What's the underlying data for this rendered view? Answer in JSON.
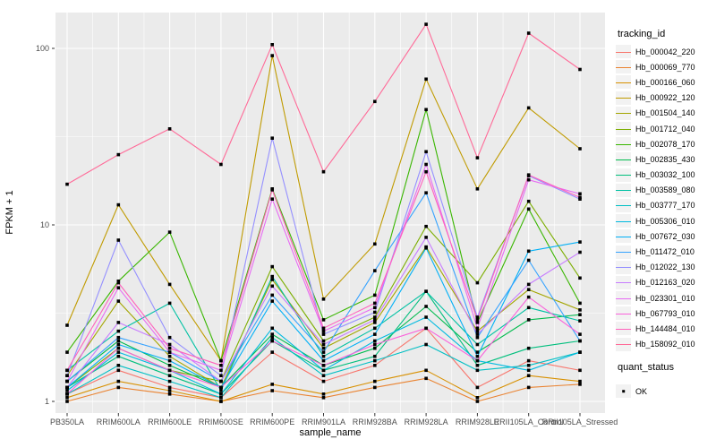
{
  "figure": {
    "background": "#FFFFFF",
    "panel_background": "#EBEBEB",
    "gridline_color": "#FFFFFF",
    "tick_label_color": "#4D4D4D",
    "tick_mark_color": "#333333",
    "axis_title_color": "#000000",
    "point_color": "#000000"
  },
  "chart_data": {
    "type": "line",
    "title": "",
    "xlabel": "sample_name",
    "ylabel": "FPKM + 1",
    "y_scale": "log10",
    "ylim": [
      0.9,
      160
    ],
    "y_ticks": [
      1,
      10,
      100
    ],
    "y_tick_labels": [
      "1",
      "10",
      "100"
    ],
    "y_minor_ticks": [
      3.162,
      31.62
    ],
    "grid": true,
    "legend_position": "right",
    "categories": [
      "PB350LA",
      "RRIM600LA",
      "RRIM600LE",
      "RRIM600SE",
      "RRIM600PE",
      "RRIM901LA",
      "RRIM928BA",
      "RRIM928LA",
      "RRIM928LE",
      "RRII105LA_Control",
      "RRII105LA_Stressed"
    ],
    "series": [
      {
        "name": "Hb_000042_220",
        "color": "#F8766D",
        "values": [
          1.1,
          1.5,
          1.2,
          1.05,
          1.9,
          1.3,
          1.6,
          2.6,
          1.2,
          1.7,
          1.5
        ]
      },
      {
        "name": "Hb_000069_770",
        "color": "#EA8331",
        "values": [
          1.0,
          1.2,
          1.1,
          1.0,
          1.15,
          1.05,
          1.2,
          1.35,
          1.0,
          1.2,
          1.25
        ]
      },
      {
        "name": "Hb_000166_060",
        "color": "#D89000",
        "values": [
          1.05,
          1.3,
          1.15,
          1.0,
          1.25,
          1.1,
          1.3,
          1.5,
          1.05,
          1.4,
          1.3
        ]
      },
      {
        "name": "Hb_000922_120",
        "color": "#C09B00",
        "values": [
          2.7,
          13.0,
          4.6,
          1.7,
          91.0,
          3.8,
          7.8,
          67.0,
          16.0,
          46.0,
          27.0
        ]
      },
      {
        "name": "Hb_001504_140",
        "color": "#A3A500",
        "values": [
          1.4,
          3.7,
          1.8,
          1.2,
          4.9,
          2.0,
          2.8,
          7.5,
          2.5,
          4.3,
          3.3
        ]
      },
      {
        "name": "Hb_001712_040",
        "color": "#7CAE00",
        "values": [
          1.2,
          2.0,
          1.5,
          1.3,
          5.8,
          2.2,
          3.0,
          9.8,
          4.7,
          13.6,
          5.0
        ]
      },
      {
        "name": "Hb_002078_170",
        "color": "#39B600",
        "values": [
          1.9,
          4.8,
          9.1,
          1.7,
          16.0,
          2.9,
          4.0,
          45.0,
          2.8,
          12.3,
          3.6
        ]
      },
      {
        "name": "Hb_002835_430",
        "color": "#00BB4E",
        "values": [
          1.3,
          2.2,
          1.6,
          1.2,
          2.4,
          1.6,
          2.0,
          3.45,
          1.9,
          2.9,
          3.1
        ]
      },
      {
        "name": "Hb_003032_100",
        "color": "#00BF7D",
        "values": [
          1.2,
          1.8,
          1.4,
          1.1,
          2.2,
          1.5,
          1.8,
          4.2,
          1.6,
          2.0,
          2.2
        ]
      },
      {
        "name": "Hb_003589_080",
        "color": "#00C1A3",
        "values": [
          1.5,
          2.5,
          3.6,
          1.15,
          5.1,
          1.8,
          2.6,
          4.2,
          2.1,
          3.4,
          2.86
        ]
      },
      {
        "name": "Hb_003777_170",
        "color": "#00BFC4",
        "values": [
          1.1,
          1.6,
          1.3,
          1.05,
          2.3,
          1.4,
          1.7,
          2.1,
          1.5,
          1.6,
          1.9
        ]
      },
      {
        "name": "Hb_005306_010",
        "color": "#00BAE0",
        "values": [
          1.15,
          1.9,
          1.5,
          1.1,
          2.6,
          1.5,
          2.2,
          3.0,
          1.7,
          1.5,
          1.9
        ]
      },
      {
        "name": "Hb_007672_030",
        "color": "#00B0F6",
        "values": [
          1.2,
          2.1,
          1.7,
          1.2,
          3.7,
          1.7,
          2.4,
          7.4,
          1.8,
          7.1,
          8.0
        ]
      },
      {
        "name": "Hb_011472_010",
        "color": "#35A2FF",
        "values": [
          1.3,
          2.3,
          1.9,
          1.3,
          4.0,
          1.9,
          5.5,
          15.2,
          2.3,
          6.3,
          2.2
        ]
      },
      {
        "name": "Hb_012022_130",
        "color": "#9590FF",
        "values": [
          1.4,
          8.2,
          2.3,
          1.4,
          31.0,
          2.4,
          3.2,
          26.0,
          3.0,
          19.0,
          14.0
        ]
      },
      {
        "name": "Hb_012163_020",
        "color": "#C77CFF",
        "values": [
          1.2,
          2.8,
          2.1,
          1.3,
          4.5,
          2.1,
          2.9,
          8.5,
          2.4,
          4.6,
          7.0
        ]
      },
      {
        "name": "Hb_023301_010",
        "color": "#E76BF3",
        "values": [
          1.3,
          4.4,
          1.9,
          1.5,
          14.0,
          2.5,
          3.4,
          22.0,
          2.6,
          18.0,
          15.0
        ]
      },
      {
        "name": "Hb_067793_010",
        "color": "#FA62DB",
        "values": [
          1.1,
          2.0,
          1.5,
          1.2,
          2.2,
          1.6,
          2.1,
          2.6,
          1.7,
          3.9,
          2.4
        ]
      },
      {
        "name": "Hb_144484_010",
        "color": "#FF62BC",
        "values": [
          1.5,
          4.7,
          2.0,
          1.6,
          15.8,
          2.6,
          3.6,
          20.0,
          2.9,
          19.2,
          14.3
        ]
      },
      {
        "name": "Hb_158092_010",
        "color": "#FF6A98",
        "values": [
          17.0,
          25.0,
          35.0,
          22.0,
          105.0,
          20.0,
          50.0,
          137.0,
          24.0,
          122.0,
          76.0
        ]
      }
    ],
    "legend": {
      "color_title": "tracking_id",
      "shape_title": "quant_status",
      "shape_items": [
        {
          "label": "OK",
          "marker": "black-square"
        }
      ]
    }
  }
}
